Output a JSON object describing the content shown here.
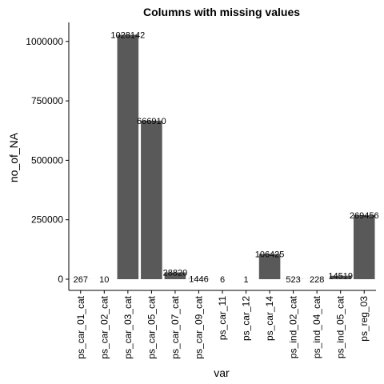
{
  "chart_data": {
    "type": "bar",
    "title": "Columns with missing values",
    "xlabel": "var",
    "ylabel": "no_of_NA",
    "categories": [
      "ps_car_01_cat",
      "ps_car_02_cat",
      "ps_car_03_cat",
      "ps_car_05_cat",
      "ps_car_07_cat",
      "ps_car_09_cat",
      "ps_car_11",
      "ps_car_12",
      "ps_car_14",
      "ps_ind_02_cat",
      "ps_ind_04_cat",
      "ps_ind_05_cat",
      "ps_reg_03"
    ],
    "values": [
      267,
      10,
      1028142,
      666910,
      28820,
      1446,
      6,
      1,
      106425,
      523,
      228,
      14519,
      269456
    ],
    "ylim": [
      0,
      1080000
    ],
    "yticks": [
      0,
      250000,
      500000,
      750000,
      1000000
    ],
    "grid": false,
    "legend": "none",
    "bar_color": "#595959"
  }
}
